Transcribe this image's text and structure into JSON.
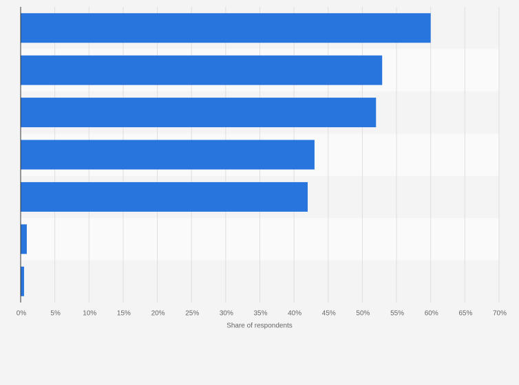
{
  "chart_data": {
    "type": "hbar",
    "x_label": "Share of respondents",
    "categories": [
      null,
      null,
      null,
      null,
      null,
      null,
      null
    ],
    "values": [
      60,
      52.9,
      52,
      43,
      42,
      0.9,
      0.5
    ],
    "color": "#2876dd",
    "xlim": [
      0,
      70
    ],
    "xticks": [
      {
        "value": 0,
        "label": "0%"
      },
      {
        "value": 5,
        "label": "5%"
      },
      {
        "value": 10,
        "label": "10%"
      },
      {
        "value": 15,
        "label": "15%"
      },
      {
        "value": 20,
        "label": "20%"
      },
      {
        "value": 25,
        "label": "25%"
      },
      {
        "value": 30,
        "label": "30%"
      },
      {
        "value": 35,
        "label": "35%"
      },
      {
        "value": 40,
        "label": "40%"
      },
      {
        "value": 45,
        "label": "45%"
      },
      {
        "value": 50,
        "label": "50%"
      },
      {
        "value": 55,
        "label": "55%"
      },
      {
        "value": 60,
        "label": "60%"
      },
      {
        "value": 65,
        "label": "65%"
      },
      {
        "value": 70,
        "label": "70%"
      }
    ],
    "grid": true
  }
}
